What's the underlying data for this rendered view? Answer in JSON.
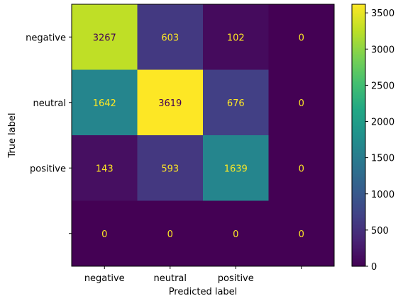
{
  "chart_data": {
    "type": "heatmap",
    "title": "",
    "xlabel": "Predicted label",
    "ylabel": "True label",
    "x_categories": [
      "negative",
      "neutral",
      "positive",
      ""
    ],
    "y_categories": [
      "negative",
      "neutral",
      "positive",
      ""
    ],
    "values": [
      [
        3267,
        603,
        102,
        0
      ],
      [
        1642,
        3619,
        676,
        0
      ],
      [
        143,
        593,
        1639,
        0
      ],
      [
        0,
        0,
        0,
        0
      ]
    ],
    "colormap": "viridis",
    "color_range": [
      0,
      3619
    ],
    "colorbar_ticks": [
      0,
      500,
      1000,
      1500,
      2000,
      2500,
      3000,
      3500
    ],
    "grid": false,
    "colors": {
      "text_on_dark": "#fde725",
      "text_on_light": "#440154"
    }
  }
}
